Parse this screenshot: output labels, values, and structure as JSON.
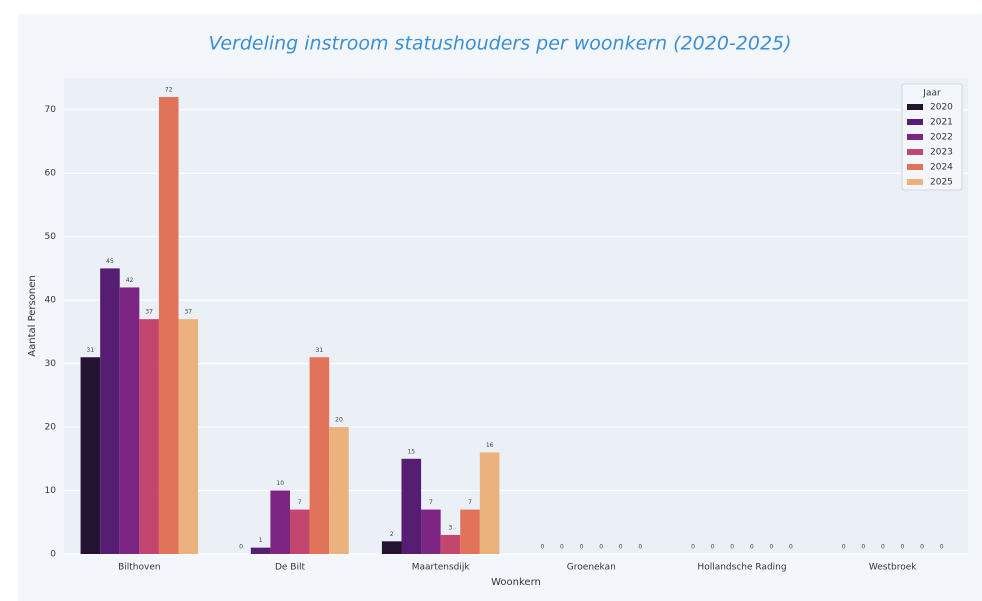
{
  "chart_data": {
    "type": "bar",
    "title": "Verdeling instroom statushouders per woonkern (2020-2025)",
    "x_label": "Woonkern",
    "y_label": "Aantal Personen",
    "categories": [
      "Bilthoven",
      "De Bilt",
      "Maartensdijk",
      "Groenekan",
      "Hollandsche Rading",
      "Westbroek"
    ],
    "legend_title": "Jaar",
    "legend": "upper right",
    "grid": true,
    "series": [
      {
        "name": "2020",
        "color": "#221331",
        "values": [
          31,
          0,
          2,
          0,
          0,
          0
        ]
      },
      {
        "name": "2021",
        "color": "#561e72",
        "values": [
          45,
          1,
          15,
          0,
          0,
          0
        ]
      },
      {
        "name": "2022",
        "color": "#7c2582",
        "values": [
          42,
          10,
          7,
          0,
          0,
          0
        ]
      },
      {
        "name": "2023",
        "color": "#c3466f",
        "values": [
          37,
          7,
          3,
          0,
          0,
          0
        ]
      },
      {
        "name": "2024",
        "color": "#e2735b",
        "values": [
          72,
          31,
          7,
          0,
          0,
          0
        ]
      },
      {
        "name": "2025",
        "color": "#ebb27e",
        "values": [
          37,
          20,
          16,
          0,
          0,
          0
        ]
      }
    ],
    "ylim": [
      0,
      75
    ],
    "yticks": [
      0,
      10,
      20,
      30,
      40,
      50,
      60,
      70
    ]
  }
}
